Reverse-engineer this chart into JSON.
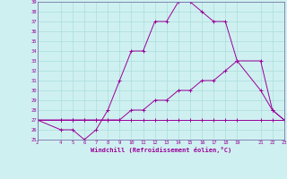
{
  "xlabel": "Windchill (Refroidissement éolien,°C)",
  "background_color": "#cff0f0",
  "grid_color": "#aadddd",
  "line_color": "#990099",
  "spine_color": "#7777aa",
  "xlim": [
    2,
    23
  ],
  "ylim": [
    25,
    39
  ],
  "xticks": [
    2,
    4,
    5,
    6,
    7,
    8,
    9,
    10,
    11,
    12,
    13,
    14,
    15,
    16,
    17,
    18,
    19,
    21,
    22,
    23
  ],
  "yticks": [
    25,
    26,
    27,
    28,
    29,
    30,
    31,
    32,
    33,
    34,
    35,
    36,
    37,
    38,
    39
  ],
  "line1_x": [
    2,
    4,
    5,
    6,
    7,
    8,
    9,
    10,
    11,
    12,
    13,
    14,
    15,
    16,
    17,
    18,
    19,
    21,
    22,
    23
  ],
  "line1_y": [
    27,
    26,
    26,
    25,
    26,
    28,
    31,
    34,
    34,
    37,
    37,
    39,
    39,
    38,
    37,
    37,
    33,
    30,
    28,
    27
  ],
  "line2_x": [
    2,
    4,
    5,
    6,
    7,
    8,
    9,
    10,
    11,
    12,
    13,
    14,
    15,
    16,
    17,
    18,
    19,
    21,
    22,
    23
  ],
  "line2_y": [
    27,
    27,
    27,
    27,
    27,
    27,
    27,
    28,
    28,
    29,
    29,
    30,
    30,
    31,
    31,
    32,
    33,
    33,
    28,
    27
  ],
  "line3_x": [
    2,
    4,
    5,
    6,
    7,
    8,
    9,
    10,
    11,
    12,
    13,
    14,
    15,
    16,
    17,
    18,
    19,
    21,
    22,
    23
  ],
  "line3_y": [
    27,
    27,
    27,
    27,
    27,
    27,
    27,
    27,
    27,
    27,
    27,
    27,
    27,
    27,
    27,
    27,
    27,
    27,
    27,
    27
  ]
}
